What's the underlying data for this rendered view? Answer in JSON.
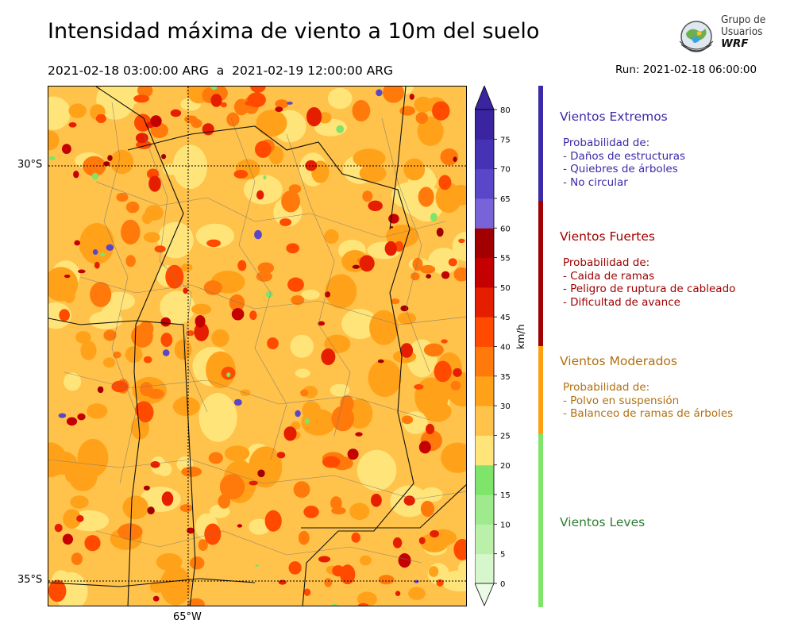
{
  "title": "Intensidad máxima de viento a 10m del suelo",
  "period": "2021-02-18 03:00:00 ARG  a  2021-02-19 12:00:00 ARG",
  "run": "Run: 2021-02-18 06:00:00",
  "logo": {
    "line1": "Grupo de",
    "line2": "Usuarios",
    "line3": "WRF"
  },
  "map": {
    "lat_labels": [
      "30°S",
      "35°S"
    ],
    "lon_labels": [
      "65°W"
    ]
  },
  "colorbar": {
    "unit": "km/h",
    "levels": [
      0,
      5,
      10,
      15,
      20,
      25,
      30,
      35,
      40,
      45,
      50,
      55,
      60,
      65,
      70,
      75,
      80
    ],
    "tick_labels": [
      "0",
      "5",
      "10",
      "15",
      "20",
      "25",
      "30",
      "35",
      "40",
      "45",
      "50",
      "55",
      "60",
      "65",
      "70",
      "75",
      "80"
    ],
    "colors": [
      "#ecfbe8",
      "#d6f7cc",
      "#baf0aa",
      "#9eea8c",
      "#7fe46a",
      "#ffe47a",
      "#ffc24a",
      "#ffa21a",
      "#ff7a0a",
      "#ff4a00",
      "#e61e00",
      "#c40000",
      "#a20000",
      "#7864d8",
      "#5a46c8",
      "#4632b4",
      "#3a24a0"
    ]
  },
  "categories": [
    {
      "title": "Vientos Extremos",
      "color": "#3a2aa8",
      "lines": [
        "Probabilidad de:",
        "- Daños de estructuras",
        "- Quiebres de árboles",
        "- No circular"
      ]
    },
    {
      "title": "Vientos Fuertes",
      "color": "#a00000",
      "lines": [
        "Probabilidad de:",
        "- Caida de ramas",
        "- Peligro de ruptura de cableado",
        "- Dificultad de avance"
      ]
    },
    {
      "title": "Vientos Moderados",
      "color": "#b07010",
      "lines": [
        "Probabilidad de:",
        "- Polvo en suspensión",
        "- Balanceo de ramas de árboles"
      ]
    },
    {
      "title": "Vientos Leves",
      "color": "#2e7d32",
      "lines": []
    }
  ]
}
